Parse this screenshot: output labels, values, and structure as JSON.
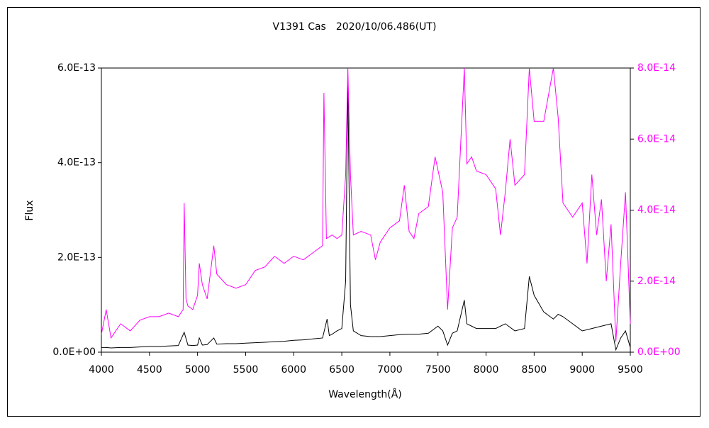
{
  "chart_data": {
    "type": "line",
    "title": "V1391 Cas　2020/10/06.486(UT)",
    "x_label": "Wavelength(Å)",
    "y_label": "Flux",
    "xlim": [
      4000,
      9500
    ],
    "xticks": [
      4000,
      4500,
      5000,
      5500,
      6000,
      6500,
      7000,
      7500,
      8000,
      8500,
      9000,
      9500
    ],
    "ylim": [
      0,
      6e-13
    ],
    "yticks": [
      {
        "value": 0,
        "label": "0.0E+00"
      },
      {
        "value": 2e-13,
        "label": "2.0E-13"
      },
      {
        "value": 4e-13,
        "label": "4.0E-13"
      },
      {
        "value": 6e-13,
        "label": "6.0E-13"
      }
    ],
    "y2lim": [
      0,
      8e-14
    ],
    "y2ticks": [
      {
        "value": 0,
        "label": "0.0E+00"
      },
      {
        "value": 2e-14,
        "label": "2.0E-14"
      },
      {
        "value": 4e-14,
        "label": "4.0E-14"
      },
      {
        "value": 6e-14,
        "label": "6.0E-14"
      },
      {
        "value": 8e-14,
        "label": "8.0E-14"
      }
    ],
    "y2color": "#ff00ff",
    "series": [
      {
        "color": "#000000",
        "axis": "y",
        "x": [
          4000,
          4050,
          4100,
          4200,
          4300,
          4400,
          4500,
          4600,
          4700,
          4800,
          4861,
          4900,
          4950,
          5000,
          5018,
          5050,
          5100,
          5169,
          5200,
          5300,
          5400,
          5500,
          5600,
          5700,
          5800,
          5900,
          6000,
          6100,
          6200,
          6300,
          6347,
          6370,
          6400,
          6450,
          6500,
          6540,
          6563,
          6590,
          6620,
          6700,
          6800,
          6900,
          7000,
          7100,
          7200,
          7300,
          7400,
          7500,
          7550,
          7600,
          7650,
          7700,
          7774,
          7800,
          7850,
          7900,
          8000,
          8100,
          8200,
          8300,
          8400,
          8450,
          8500,
          8600,
          8700,
          8750,
          8800,
          8900,
          9000,
          9100,
          9200,
          9300,
          9350,
          9400,
          9450,
          9500
        ],
        "values": [
          1e-14,
          1e-14,
          9e-15,
          1e-14,
          1e-14,
          1.1e-14,
          1.2e-14,
          1.2e-14,
          1.3e-14,
          1.4e-14,
          4.2e-14,
          1.5e-14,
          1.4e-14,
          1.5e-14,
          3e-14,
          1.5e-14,
          1.6e-14,
          3e-14,
          1.7e-14,
          1.8e-14,
          1.8e-14,
          1.9e-14,
          2e-14,
          2.1e-14,
          2.2e-14,
          2.3e-14,
          2.5e-14,
          2.6e-14,
          2.8e-14,
          3e-14,
          7e-14,
          3.5e-14,
          3.8e-14,
          4.5e-14,
          5e-14,
          1.5e-13,
          5.7e-13,
          1e-13,
          4.5e-14,
          3.5e-14,
          3.3e-14,
          3.3e-14,
          3.5e-14,
          3.7e-14,
          3.8e-14,
          3.8e-14,
          4e-14,
          5.5e-14,
          4.5e-14,
          1.5e-14,
          4e-14,
          4.5e-14,
          1.1e-13,
          6e-14,
          5.5e-14,
          5e-14,
          5e-14,
          5e-14,
          6e-14,
          4.5e-14,
          5e-14,
          1.6e-13,
          1.2e-13,
          8.5e-14,
          7e-14,
          8e-14,
          7.5e-14,
          6e-14,
          4.5e-14,
          5e-14,
          5.5e-14,
          6e-14,
          5e-15,
          3e-14,
          4.5e-14,
          1e-14
        ]
      },
      {
        "color": "#ff00ff",
        "axis": "y2",
        "x": [
          4000,
          4050,
          4100,
          4200,
          4300,
          4400,
          4500,
          4600,
          4700,
          4800,
          4850,
          4861,
          4880,
          4900,
          4950,
          5000,
          5018,
          5050,
          5100,
          5169,
          5200,
          5300,
          5400,
          5500,
          5600,
          5700,
          5800,
          5900,
          6000,
          6100,
          6200,
          6300,
          6314,
          6340,
          6400,
          6450,
          6500,
          6540,
          6563,
          6590,
          6620,
          6700,
          6800,
          6850,
          6900,
          7000,
          7100,
          7150,
          7200,
          7250,
          7300,
          7400,
          7470,
          7550,
          7600,
          7650,
          7700,
          7774,
          7800,
          7850,
          7900,
          8000,
          8100,
          8150,
          8200,
          8250,
          8300,
          8400,
          8450,
          8500,
          8600,
          8700,
          8750,
          8800,
          8900,
          9000,
          9050,
          9100,
          9150,
          9200,
          9250,
          9300,
          9350,
          9400,
          9450,
          9500
        ],
        "values": [
          5e-15,
          1.2e-14,
          4e-15,
          8e-15,
          6e-15,
          9e-15,
          1e-14,
          1e-14,
          1.1e-14,
          1e-14,
          1.2e-14,
          4.2e-14,
          1.5e-14,
          1.3e-14,
          1.2e-14,
          1.6e-14,
          2.5e-14,
          1.9e-14,
          1.5e-14,
          3e-14,
          2.2e-14,
          1.9e-14,
          1.8e-14,
          1.9e-14,
          2.3e-14,
          2.4e-14,
          2.7e-14,
          2.5e-14,
          2.7e-14,
          2.6e-14,
          2.8e-14,
          3e-14,
          7.3e-14,
          3.2e-14,
          3.3e-14,
          3.2e-14,
          3.3e-14,
          5e-14,
          8e-14,
          5e-14,
          3.3e-14,
          3.4e-14,
          3.3e-14,
          2.6e-14,
          3.1e-14,
          3.5e-14,
          3.7e-14,
          4.7e-14,
          3.4e-14,
          3.2e-14,
          3.9e-14,
          4.1e-14,
          5.5e-14,
          4.5e-14,
          1.2e-14,
          3.5e-14,
          3.8e-14,
          8e-14,
          5.3e-14,
          5.5e-14,
          5.1e-14,
          5e-14,
          4.6e-14,
          3.3e-14,
          4.5e-14,
          6e-14,
          4.7e-14,
          5e-14,
          8e-14,
          6.5e-14,
          6.5e-14,
          8e-14,
          6.6e-14,
          4.2e-14,
          3.8e-14,
          4.2e-14,
          2.5e-14,
          5e-14,
          3.3e-14,
          4.3e-14,
          2e-14,
          3.6e-14,
          3e-15,
          2.5e-14,
          4.5e-14,
          8e-15
        ]
      }
    ]
  }
}
